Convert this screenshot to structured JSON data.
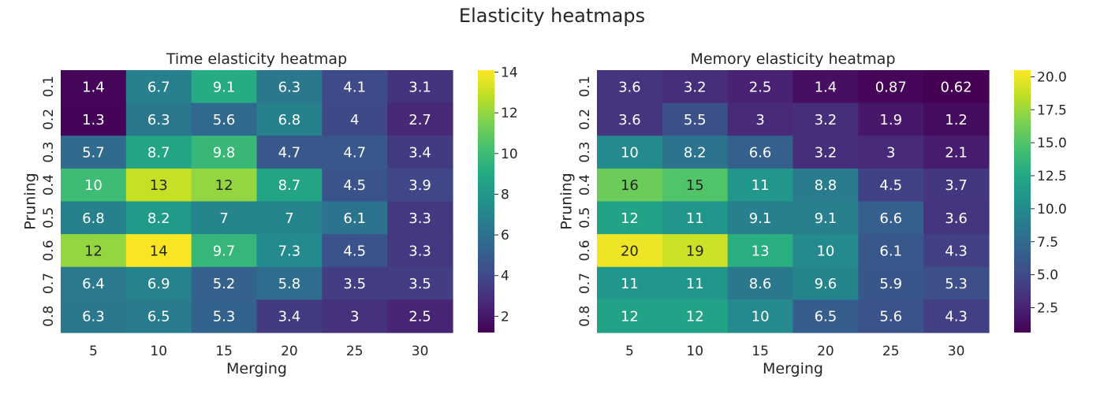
{
  "suptitle": "Elasticity heatmaps",
  "chart_data": [
    {
      "type": "heatmap",
      "title": "Time elasticity heatmap",
      "xlabel": "Merging",
      "ylabel": "Pruning",
      "x": [
        "5",
        "10",
        "15",
        "20",
        "25",
        "30"
      ],
      "y": [
        "0.1",
        "0.2",
        "0.3",
        "0.4",
        "0.5",
        "0.6",
        "0.7",
        "0.8"
      ],
      "values": [
        [
          1.4,
          6.7,
          9.1,
          6.3,
          4.1,
          3.1
        ],
        [
          1.3,
          6.3,
          5.6,
          6.8,
          4,
          2.7
        ],
        [
          5.7,
          8.7,
          9.8,
          4.7,
          4.7,
          3.4
        ],
        [
          10,
          13,
          12,
          8.7,
          4.5,
          3.9
        ],
        [
          6.8,
          8.2,
          7,
          7,
          6.1,
          3.3
        ],
        [
          12,
          14,
          9.7,
          7.3,
          4.5,
          3.3
        ],
        [
          6.4,
          6.9,
          5.2,
          5.8,
          3.5,
          3.5
        ],
        [
          6.3,
          6.5,
          5.3,
          3.4,
          3,
          2.5
        ]
      ],
      "colormap": "viridis",
      "vmin": 1.2,
      "vmax": 14.1,
      "colorbar_ticks": [
        "2",
        "4",
        "6",
        "8",
        "10",
        "12",
        "14"
      ]
    },
    {
      "type": "heatmap",
      "title": "Memory elasticity heatmap",
      "xlabel": "Merging",
      "ylabel": "Pruning",
      "x": [
        "5",
        "10",
        "15",
        "20",
        "25",
        "30"
      ],
      "y": [
        "0.1",
        "0.2",
        "0.3",
        "0.4",
        "0.5",
        "0.6",
        "0.7",
        "0.8"
      ],
      "values": [
        [
          3.6,
          3.2,
          2.5,
          1.4,
          0.87,
          0.62
        ],
        [
          3.6,
          5.5,
          3,
          3.2,
          1.9,
          1.2
        ],
        [
          10,
          8.2,
          6.6,
          3.2,
          3,
          2.1
        ],
        [
          16,
          15,
          11,
          8.8,
          4.5,
          3.7
        ],
        [
          12,
          11,
          9.1,
          9.1,
          6.6,
          3.6
        ],
        [
          20,
          19,
          13,
          10,
          6.1,
          4.3
        ],
        [
          11,
          11,
          8.6,
          9.6,
          5.9,
          5.3
        ],
        [
          12,
          12,
          10,
          6.5,
          5.6,
          4.3
        ]
      ],
      "colormap": "viridis",
      "vmin": 0.62,
      "vmax": 20.5,
      "colorbar_ticks": [
        "2.5",
        "5.0",
        "7.5",
        "10.0",
        "12.5",
        "15.0",
        "17.5",
        "20.0"
      ]
    }
  ]
}
